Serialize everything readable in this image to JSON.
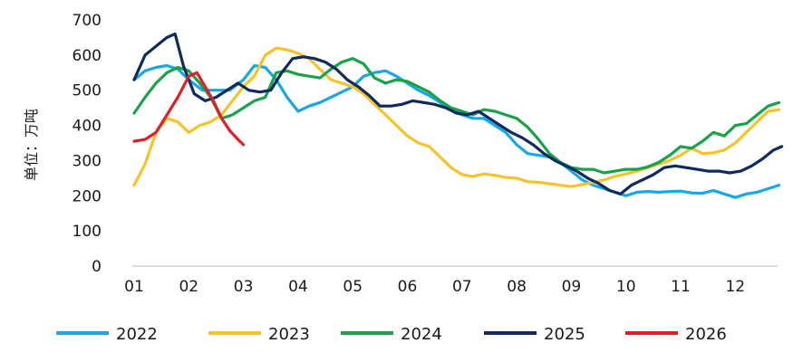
{
  "chart_data": {
    "type": "line",
    "ylabel": "单位：万吨",
    "ylim": [
      0,
      700
    ],
    "yticks": [
      0,
      100,
      200,
      300,
      400,
      500,
      600,
      700
    ],
    "x_tick_labels": [
      "01",
      "02",
      "03",
      "04",
      "05",
      "06",
      "07",
      "08",
      "09",
      "10",
      "11",
      "12"
    ],
    "x_unit": "month (01–12)",
    "legend_position": "bottom",
    "grid": false,
    "series": [
      {
        "name": "2022",
        "color": "#1AA7E8",
        "x": [
          1.0,
          1.2,
          1.4,
          1.6,
          1.8,
          2.0,
          2.25,
          2.5,
          2.75,
          3.0,
          3.2,
          3.4,
          3.6,
          3.8,
          4.0,
          4.2,
          4.4,
          4.6,
          4.8,
          5.0,
          5.2,
          5.4,
          5.6,
          5.8,
          6.0,
          6.2,
          6.4,
          6.6,
          6.8,
          7.0,
          7.2,
          7.4,
          7.6,
          7.8,
          8.0,
          8.2,
          8.4,
          8.6,
          8.8,
          9.0,
          9.2,
          9.4,
          9.6,
          9.8,
          10.0,
          10.2,
          10.4,
          10.6,
          10.8,
          11.0,
          11.2,
          11.4,
          11.6,
          11.8,
          12.0,
          12.2,
          12.4,
          12.6,
          12.8
        ],
        "y": [
          530,
          555,
          565,
          570,
          560,
          530,
          500,
          500,
          500,
          530,
          570,
          565,
          530,
          480,
          440,
          455,
          465,
          480,
          495,
          510,
          540,
          550,
          555,
          540,
          520,
          500,
          485,
          465,
          445,
          430,
          420,
          420,
          400,
          380,
          345,
          320,
          315,
          310,
          295,
          270,
          245,
          230,
          220,
          210,
          200,
          210,
          212,
          210,
          212,
          213,
          208,
          207,
          215,
          205,
          195,
          205,
          210,
          220,
          230
        ]
      },
      {
        "name": "2023",
        "color": "#F8C22A",
        "x": [
          1.0,
          1.2,
          1.4,
          1.6,
          1.8,
          2.0,
          2.2,
          2.4,
          2.6,
          2.8,
          3.0,
          3.2,
          3.4,
          3.6,
          3.8,
          4.0,
          4.2,
          4.4,
          4.6,
          4.8,
          5.0,
          5.2,
          5.4,
          5.6,
          5.8,
          6.0,
          6.2,
          6.4,
          6.6,
          6.8,
          7.0,
          7.2,
          7.4,
          7.6,
          7.8,
          8.0,
          8.2,
          8.4,
          8.6,
          8.8,
          9.0,
          9.2,
          9.4,
          9.6,
          9.8,
          10.0,
          10.2,
          10.4,
          10.6,
          10.8,
          11.0,
          11.2,
          11.4,
          11.6,
          11.8,
          12.0,
          12.2,
          12.4,
          12.6,
          12.8
        ],
        "y": [
          230,
          290,
          380,
          420,
          410,
          380,
          400,
          410,
          430,
          470,
          510,
          540,
          600,
          620,
          615,
          605,
          590,
          560,
          530,
          520,
          510,
          490,
          460,
          430,
          400,
          370,
          350,
          340,
          310,
          280,
          260,
          255,
          262,
          258,
          252,
          250,
          240,
          238,
          234,
          230,
          226,
          232,
          238,
          245,
          255,
          262,
          270,
          280,
          290,
          300,
          315,
          335,
          320,
          322,
          330,
          350,
          380,
          410,
          440,
          445
        ]
      },
      {
        "name": "2024",
        "color": "#19A349",
        "x": [
          1.0,
          1.2,
          1.4,
          1.6,
          1.8,
          2.0,
          2.2,
          2.4,
          2.6,
          2.8,
          3.0,
          3.2,
          3.4,
          3.6,
          3.8,
          4.0,
          4.2,
          4.4,
          4.6,
          4.8,
          5.0,
          5.2,
          5.4,
          5.6,
          5.8,
          6.0,
          6.2,
          6.4,
          6.6,
          6.8,
          7.0,
          7.2,
          7.4,
          7.6,
          7.8,
          8.0,
          8.2,
          8.4,
          8.6,
          8.8,
          9.0,
          9.2,
          9.4,
          9.6,
          9.8,
          10.0,
          10.2,
          10.4,
          10.6,
          10.8,
          11.0,
          11.2,
          11.4,
          11.6,
          11.8,
          12.0,
          12.2,
          12.4,
          12.6,
          12.8
        ],
        "y": [
          435,
          480,
          520,
          550,
          565,
          555,
          520,
          480,
          420,
          430,
          450,
          470,
          480,
          550,
          555,
          545,
          540,
          535,
          560,
          580,
          590,
          575,
          535,
          520,
          530,
          525,
          510,
          495,
          470,
          450,
          440,
          430,
          445,
          440,
          430,
          420,
          395,
          360,
          320,
          295,
          280,
          275,
          275,
          265,
          270,
          275,
          275,
          282,
          295,
          315,
          340,
          335,
          355,
          380,
          370,
          400,
          405,
          430,
          455,
          465
        ]
      },
      {
        "name": "2025",
        "color": "#0F2A5E",
        "x": [
          1.0,
          1.2,
          1.4,
          1.6,
          1.75,
          1.9,
          2.1,
          2.3,
          2.5,
          2.7,
          2.9,
          3.1,
          3.3,
          3.5,
          3.7,
          3.9,
          4.1,
          4.3,
          4.5,
          4.7,
          4.9,
          5.1,
          5.3,
          5.5,
          5.7,
          5.9,
          6.1,
          6.3,
          6.5,
          6.7,
          6.9,
          7.1,
          7.3,
          7.5,
          7.7,
          7.9,
          8.1,
          8.3,
          8.5,
          8.7,
          8.9,
          9.1,
          9.3,
          9.5,
          9.7,
          9.9,
          10.1,
          10.3,
          10.5,
          10.7,
          10.9,
          11.1,
          11.3,
          11.5,
          11.7,
          11.9,
          12.1,
          12.3,
          12.5,
          12.7,
          12.85
        ],
        "y": [
          530,
          600,
          625,
          650,
          660,
          570,
          490,
          470,
          480,
          500,
          520,
          500,
          495,
          500,
          550,
          590,
          595,
          590,
          580,
          560,
          530,
          510,
          485,
          455,
          455,
          460,
          470,
          465,
          460,
          450,
          435,
          430,
          440,
          420,
          400,
          380,
          365,
          345,
          320,
          300,
          285,
          270,
          250,
          235,
          215,
          205,
          230,
          245,
          260,
          280,
          285,
          280,
          275,
          270,
          270,
          265,
          270,
          285,
          305,
          330,
          340
        ]
      },
      {
        "name": "2026",
        "color": "#E01E26",
        "x": [
          1.0,
          1.2,
          1.4,
          1.6,
          1.8,
          2.0,
          2.15,
          2.3,
          2.45,
          2.6,
          2.75,
          2.9,
          3.0
        ],
        "y": [
          355,
          360,
          380,
          430,
          480,
          540,
          550,
          510,
          470,
          420,
          385,
          360,
          345
        ]
      }
    ]
  }
}
